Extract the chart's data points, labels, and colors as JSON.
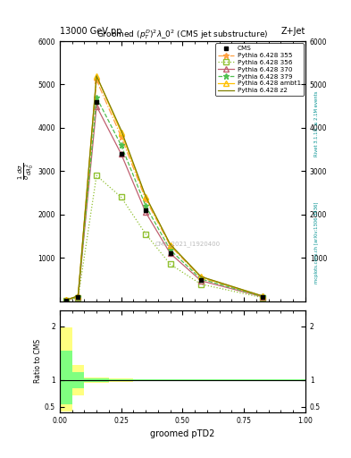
{
  "header_left": "13000 GeV pp",
  "header_right": "Z+Jet",
  "xlabel": "groomed pTD2",
  "right_label_top": "Rivet 3.1.10, ≥ 2.1M events",
  "right_label_bottom": "mcplots.cern.ch [arXiv:1306.3436]",
  "watermark": "CMS_2021_I1920400",
  "bin_edges": [
    0.0,
    0.05,
    0.1,
    0.2,
    0.3,
    0.4,
    0.5,
    0.65,
    1.0
  ],
  "bin_centers": [
    0.025,
    0.075,
    0.15,
    0.25,
    0.35,
    0.45,
    0.575,
    0.825
  ],
  "cms_vals": [
    20,
    100,
    4600,
    3400,
    2100,
    1100,
    480,
    100
  ],
  "pythia_355": {
    "label": "Pythia 6.428 355",
    "color": "#FFA040",
    "linestyle": "-.",
    "marker": "*",
    "markerfacecolor": "#FFA040",
    "vals": [
      25,
      110,
      5100,
      3800,
      2350,
      1280,
      540,
      110
    ]
  },
  "pythia_356": {
    "label": "Pythia 6.428 356",
    "color": "#90C030",
    "linestyle": ":",
    "marker": "s",
    "markerfacecolor": "none",
    "vals": [
      15,
      70,
      2900,
      2400,
      1550,
      850,
      390,
      80
    ]
  },
  "pythia_370": {
    "label": "Pythia 6.428 370",
    "color": "#C06070",
    "linestyle": "-",
    "marker": "^",
    "markerfacecolor": "none",
    "vals": [
      20,
      100,
      4500,
      3400,
      2050,
      1100,
      470,
      100
    ]
  },
  "pythia_379": {
    "label": "Pythia 6.428 379",
    "color": "#50C050",
    "linestyle": "--",
    "marker": "*",
    "markerfacecolor": "#50C050",
    "vals": [
      20,
      100,
      4700,
      3600,
      2200,
      1180,
      510,
      105
    ]
  },
  "pythia_ambt1": {
    "label": "Pythia 6.428 ambt1",
    "color": "#FFC000",
    "linestyle": "-",
    "marker": "^",
    "markerfacecolor": "none",
    "vals": [
      25,
      115,
      5200,
      3900,
      2400,
      1300,
      560,
      115
    ]
  },
  "pythia_z2": {
    "label": "Pythia 6.428 z2",
    "color": "#808000",
    "linestyle": "-",
    "marker": null,
    "markerfacecolor": "#808000",
    "vals": [
      25,
      120,
      5200,
      3950,
      2420,
      1310,
      565,
      118
    ]
  },
  "ratio_bin_edges": [
    0.0,
    0.05,
    0.1,
    0.2,
    0.3,
    0.4,
    0.5,
    0.65,
    1.0
  ],
  "ratio_band_yellow_lo": [
    0.42,
    0.72,
    0.95,
    0.97,
    0.98,
    0.98,
    0.99,
    0.99
  ],
  "ratio_band_yellow_hi": [
    1.98,
    1.28,
    1.05,
    1.03,
    1.02,
    1.02,
    1.01,
    1.01
  ],
  "ratio_band_green_lo": [
    0.55,
    0.85,
    0.97,
    0.98,
    0.99,
    0.99,
    0.995,
    0.995
  ],
  "ratio_band_green_hi": [
    1.55,
    1.15,
    1.03,
    1.02,
    1.01,
    1.01,
    1.005,
    1.005
  ]
}
